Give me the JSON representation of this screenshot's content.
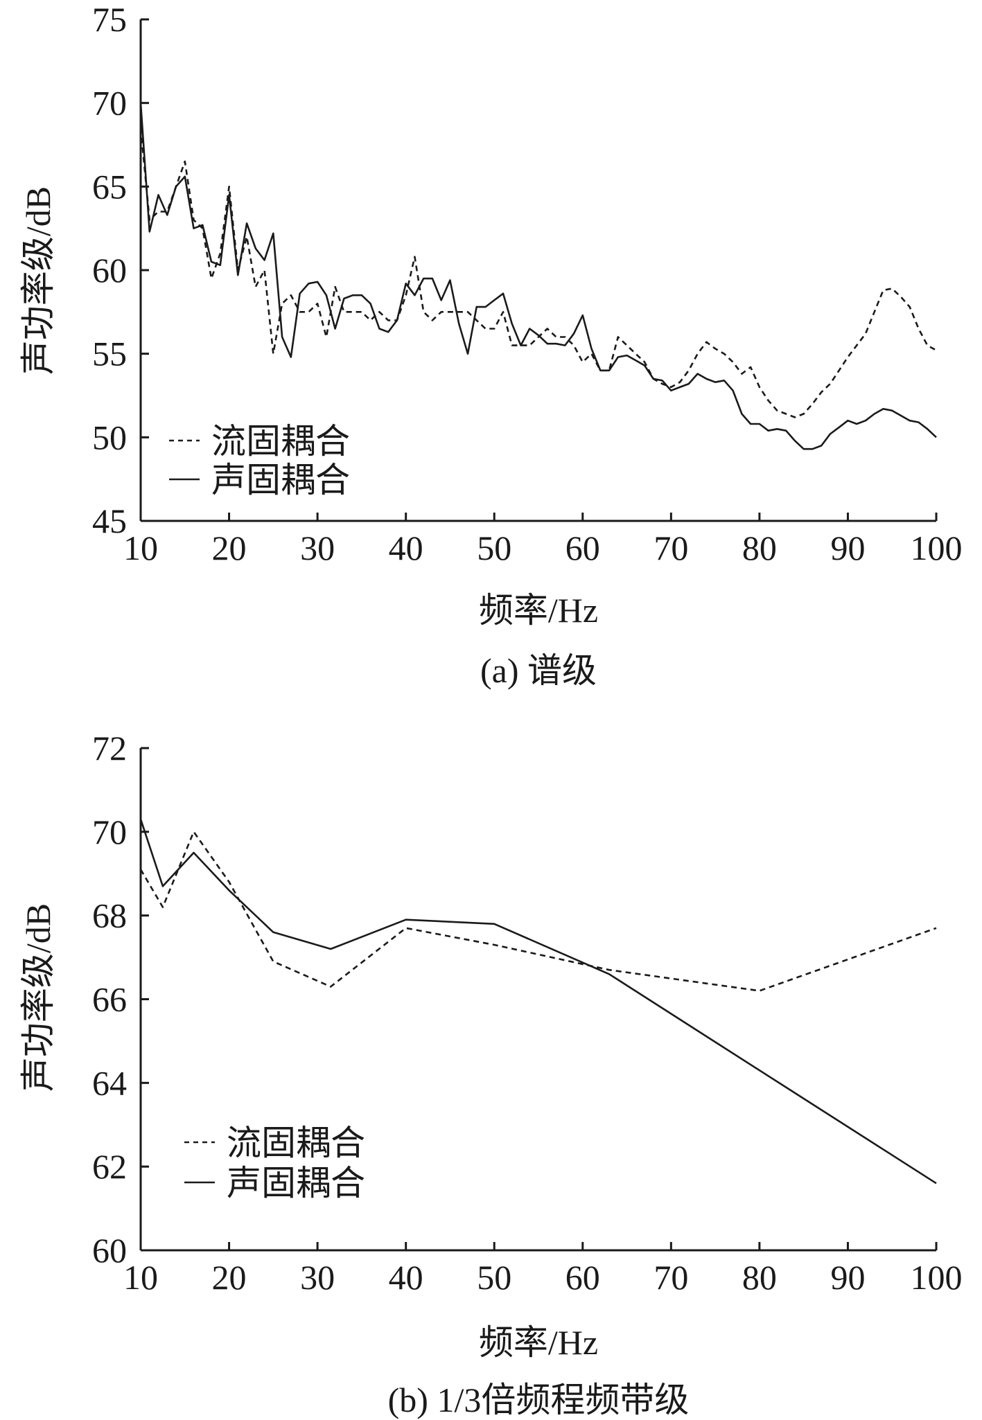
{
  "chart_data": [
    {
      "id": "a",
      "type": "line",
      "caption": "(a) 谱级",
      "xlabel": "频率/Hz",
      "ylabel": "声功率级/dB",
      "xlim": [
        10,
        100
      ],
      "ylim": [
        45,
        75
      ],
      "xticks": [
        10,
        20,
        30,
        40,
        50,
        60,
        70,
        80,
        90,
        100
      ],
      "yticks": [
        45,
        50,
        55,
        60,
        65,
        70,
        75
      ],
      "grid": false,
      "legend_position": "bottom-left",
      "series": [
        {
          "name": "流固耦合",
          "style": "dashed",
          "x": [
            10,
            11,
            12,
            13,
            14,
            15,
            16,
            17,
            18,
            19,
            20,
            21,
            22,
            23,
            24,
            25,
            26,
            27,
            28,
            29,
            30,
            31,
            32,
            33,
            34,
            35,
            36,
            37,
            38,
            39,
            40,
            41,
            42,
            43,
            44,
            45,
            46,
            47,
            48,
            49,
            50,
            51,
            52,
            53,
            54,
            55,
            56,
            57,
            58,
            59,
            60,
            61,
            62,
            63,
            64,
            65,
            66,
            67,
            68,
            69,
            70,
            71,
            72,
            73,
            74,
            75,
            76,
            77,
            78,
            79,
            80,
            81,
            82,
            83,
            84,
            85,
            86,
            87,
            88,
            89,
            90,
            91,
            92,
            93,
            94,
            95,
            96,
            97,
            98,
            99,
            100
          ],
          "y": [
            68.5,
            63.0,
            63.5,
            63.5,
            65.0,
            66.5,
            63.0,
            62.5,
            59.5,
            61.0,
            65.0,
            60.0,
            62.0,
            59.0,
            60.0,
            55.0,
            58.0,
            58.5,
            57.5,
            57.5,
            58.0,
            56.0,
            59.0,
            57.5,
            57.5,
            57.5,
            57.0,
            57.5,
            57.0,
            57.0,
            58.5,
            60.8,
            57.5,
            57.0,
            57.5,
            57.5,
            57.5,
            57.5,
            57.0,
            56.5,
            56.5,
            57.5,
            55.5,
            55.5,
            55.5,
            56.0,
            56.5,
            56.0,
            56.0,
            55.5,
            54.5,
            55.0,
            54.0,
            54.0,
            56.0,
            55.5,
            55.0,
            54.5,
            53.5,
            53.2,
            53.0,
            53.3,
            54.0,
            55.0,
            55.7,
            55.3,
            55.0,
            54.5,
            53.8,
            54.2,
            53.0,
            52.2,
            51.6,
            51.4,
            51.2,
            51.4,
            52.0,
            52.7,
            53.2,
            54.0,
            54.8,
            55.5,
            56.2,
            57.5,
            58.8,
            58.9,
            58.4,
            57.8,
            56.5,
            55.5,
            55.2
          ]
        },
        {
          "name": "声固耦合",
          "style": "solid",
          "x": [
            10,
            11,
            12,
            13,
            14,
            15,
            16,
            17,
            18,
            19,
            20,
            21,
            22,
            23,
            24,
            25,
            26,
            27,
            28,
            29,
            30,
            31,
            32,
            33,
            34,
            35,
            36,
            37,
            38,
            39,
            40,
            41,
            42,
            43,
            44,
            45,
            46,
            47,
            48,
            49,
            50,
            51,
            52,
            53,
            54,
            55,
            56,
            57,
            58,
            59,
            60,
            61,
            62,
            63,
            64,
            65,
            66,
            67,
            68,
            69,
            70,
            71,
            72,
            73,
            74,
            75,
            76,
            77,
            78,
            79,
            80,
            81,
            82,
            83,
            84,
            85,
            86,
            87,
            88,
            89,
            90,
            91,
            92,
            93,
            94,
            95,
            96,
            97,
            98,
            99,
            100
          ],
          "y": [
            70.0,
            62.3,
            64.5,
            63.3,
            65.0,
            65.6,
            62.5,
            62.7,
            60.5,
            60.3,
            64.5,
            59.7,
            62.8,
            61.3,
            60.6,
            62.2,
            56.0,
            54.8,
            58.6,
            59.2,
            59.3,
            58.5,
            56.5,
            58.3,
            58.5,
            58.5,
            58.0,
            56.5,
            56.3,
            57.0,
            59.2,
            58.5,
            59.5,
            59.5,
            58.2,
            59.4,
            56.8,
            55.0,
            57.8,
            57.8,
            58.2,
            58.6,
            56.8,
            55.5,
            56.5,
            56.1,
            55.6,
            55.6,
            55.5,
            56.2,
            57.3,
            55.3,
            54.0,
            54.0,
            54.8,
            54.9,
            54.6,
            54.3,
            53.5,
            53.4,
            52.8,
            53.0,
            53.2,
            53.8,
            53.5,
            53.3,
            53.4,
            52.8,
            51.4,
            50.8,
            50.8,
            50.4,
            50.5,
            50.4,
            49.8,
            49.3,
            49.3,
            49.5,
            50.2,
            50.6,
            51.0,
            50.8,
            51.0,
            51.4,
            51.7,
            51.6,
            51.3,
            51.0,
            50.9,
            50.5,
            50.0
          ]
        }
      ]
    },
    {
      "id": "b",
      "type": "line",
      "caption": "(b) 1/3倍频程频带级",
      "xlabel": "频率/Hz",
      "ylabel": "声功率级/dB",
      "xlim": [
        10,
        100
      ],
      "ylim": [
        60,
        72
      ],
      "xticks": [
        10,
        20,
        30,
        40,
        50,
        60,
        70,
        80,
        90,
        100
      ],
      "yticks": [
        60,
        62,
        64,
        66,
        68,
        70,
        72
      ],
      "grid": false,
      "legend_position": "bottom-left",
      "series": [
        {
          "name": "流固耦合",
          "style": "dashed",
          "x": [
            10,
            12.5,
            16,
            20,
            25,
            31.5,
            40,
            50,
            63,
            80,
            100
          ],
          "y": [
            69.1,
            68.2,
            70.0,
            68.8,
            66.9,
            66.3,
            67.7,
            67.3,
            66.7,
            66.2,
            67.7
          ]
        },
        {
          "name": "声固耦合",
          "style": "solid",
          "x": [
            10,
            12.5,
            16,
            20,
            25,
            31.5,
            40,
            50,
            63,
            80,
            100
          ],
          "y": [
            70.3,
            68.7,
            69.5,
            68.6,
            67.6,
            67.2,
            67.9,
            67.8,
            66.6,
            64.3,
            61.6
          ]
        }
      ]
    }
  ]
}
